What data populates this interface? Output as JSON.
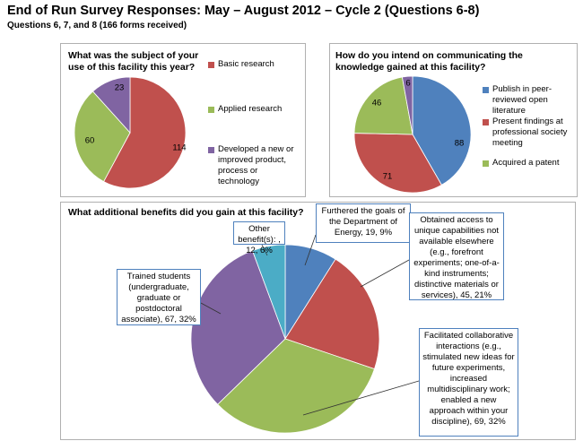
{
  "title": "End of Run Survey Responses: May – August 2012 – Cycle 2 (Questions 6-8)",
  "subtitle": "Questions 6, 7, and 8 (166 forms received)",
  "chart_data": [
    {
      "type": "pie",
      "title": "What was the subject of your use of this facility this year?",
      "categories": [
        "Basic research",
        "Applied research",
        "Developed a new or improved product, process or technology"
      ],
      "values": [
        114,
        60,
        23
      ],
      "colors": [
        "#c0504d",
        "#9bbb59",
        "#8064a2"
      ]
    },
    {
      "type": "pie",
      "title": "How do you intend on communicating the knowledge gained at this facility?",
      "categories": [
        "Publish in peer-reviewed open literature",
        "Present findings at professional society meeting",
        "Acquired a patent",
        null
      ],
      "values": [
        88,
        71,
        46,
        6
      ],
      "colors": [
        "#4f81bd",
        "#c0504d",
        "#9bbb59",
        "#8064a2"
      ]
    },
    {
      "type": "pie",
      "title": "What additional benefits did you gain at this facility?",
      "values": [
        19,
        45,
        69,
        67,
        12
      ],
      "value_labels": [
        "Furthered the goals of the Department of Energy, 19, 9%",
        "Obtained access to unique capabilities not available elsewhere (e.g., forefront experiments; one-of-a-kind instruments; distinctive materials or services), 45, 21%",
        "Facilitated collaborative interactions (e.g., stimulated new ideas for future experiments, increased multidisciplinary work; enabled a new approach within your discipline), 69, 32%",
        "Trained students (undergraduate, graduate or postdoctoral associate), 67, 32%",
        "Other benefit(s): , 12, 6%"
      ],
      "colors": [
        "#4f81bd",
        "#c0504d",
        "#9bbb59",
        "#8064a2",
        "#4bacc6"
      ]
    }
  ]
}
